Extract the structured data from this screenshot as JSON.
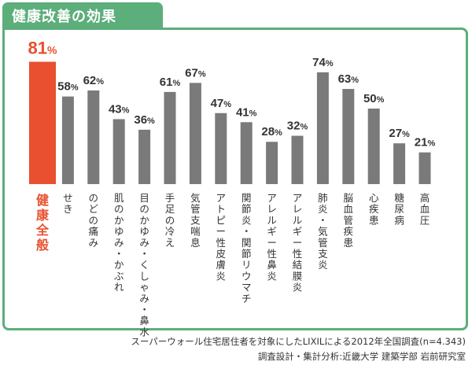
{
  "header": {
    "title": "健康改善の効果"
  },
  "chart_data": {
    "type": "bar",
    "categories": [
      "健康全般",
      "せき",
      "のどの痛み",
      "肌のかゆみ・かぶれ",
      "目のかゆみ・くしゃみ・鼻水",
      "手足の冷え",
      "気管支喘息",
      "アトピー性皮膚炎",
      "関節炎・関節リウマチ",
      "アレルギー性鼻炎",
      "アレルギー性結膜炎",
      "肺炎・気管支炎",
      "脳血管疾患",
      "心疾患",
      "糖尿病",
      "高血圧"
    ],
    "values": [
      81,
      58,
      62,
      43,
      36,
      61,
      67,
      47,
      41,
      28,
      32,
      74,
      63,
      50,
      27,
      21
    ],
    "value_labels": [
      "81",
      "58",
      "62",
      "43",
      "36",
      "61",
      "67",
      "47",
      "41",
      "28",
      "32",
      "74",
      "63",
      "50",
      "27",
      "21"
    ],
    "unit": "%",
    "ylim": [
      0,
      85
    ],
    "highlight_index": 0,
    "colors": {
      "highlight": "#e8502f",
      "bar": "#7a7a7a",
      "label": "#333333",
      "highlight_label": "#e8502f"
    }
  },
  "footnotes": [
    "スーパーウォール住宅居住者を対象にしたLIXILによる2012年全国調査(n=4.343)",
    "調査設計・集計分析:近畿大学 建築学部 岩前研究室"
  ]
}
